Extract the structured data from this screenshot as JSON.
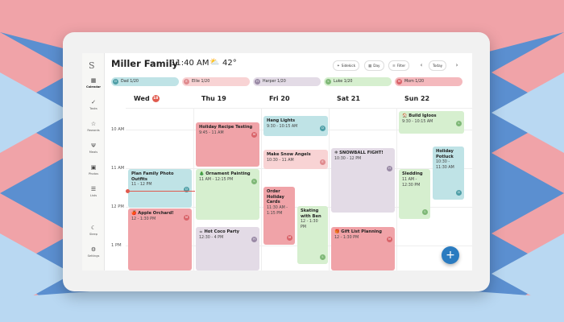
{
  "app": {
    "logo": "S",
    "family": "Miller Family",
    "time": "11:40 AM",
    "weather_icon": "partly-cloudy-icon",
    "temperature": "42°"
  },
  "toolbar": {
    "sidekick": "Sidekick",
    "day": "Day",
    "filter": "Filter",
    "today": "Today",
    "prev": "‹",
    "next": "›"
  },
  "nav": {
    "calendar": "Calendar",
    "tasks": "Tasks",
    "rewards": "Rewards",
    "meals": "Meals",
    "photos": "Photos",
    "lists": "Lists",
    "sleep": "Sleep",
    "settings": "Settings"
  },
  "people": [
    {
      "name": "Dad 1/20",
      "initial": "D",
      "color": "#bfe3e6",
      "av": "#4e9ea6"
    },
    {
      "name": "Ellie 1/20",
      "initial": "E",
      "color": "#f8d3d4",
      "av": "#e08a8e"
    },
    {
      "name": "Harper 1/20",
      "initial": "H",
      "color": "#e3dbe6",
      "av": "#9a8aa6"
    },
    {
      "name": "Luke 1/20",
      "initial": "L",
      "color": "#d6efcf",
      "av": "#7fb877"
    },
    {
      "name": "Mom 1/20",
      "initial": "M",
      "color": "#f4b9bd",
      "av": "#d9646a"
    }
  ],
  "days": {
    "wed": "Wed",
    "wed_badge": "18",
    "thu": "Thu 19",
    "fri": "Fri 20",
    "sat": "Sat 21",
    "sun": "Sun 22"
  },
  "hours": {
    "h10": "10 AM",
    "h11": "11 AM",
    "h12": "12 PM",
    "h1": "1 PM"
  },
  "events": {
    "plan": {
      "title": "Plan Family Photo Outfits",
      "time": "11 - 12 PM",
      "initial": "D"
    },
    "apple": {
      "title": "🍎 Apple Orchard!",
      "time": "12 - 1:30 PM",
      "initial": "M"
    },
    "recipe": {
      "title": "Holiday Recipe Testing",
      "time": "9:45 - 11 AM",
      "initial": "M"
    },
    "ornament": {
      "title": "🎄 Ornament Painting",
      "time": "11 AM - 12:15 PM",
      "initial": "L"
    },
    "cocoa": {
      "title": "☕ Hot Coco Party",
      "time": "12:30 - 4 PM",
      "initial": "H"
    },
    "lights": {
      "title": "Hang Lights",
      "time": "9:30 - 10:15 AM",
      "initial": "D"
    },
    "angels": {
      "title": "Make Snow Angels",
      "time": "10:30 - 11 AM",
      "initial": "E"
    },
    "cards": {
      "title": "Order Holiday Cards",
      "time": "11:30 AM - 1:15 PM",
      "initial": "M"
    },
    "skating": {
      "title": "Skating with Ben",
      "time": "12 - 1:30 PM",
      "initial": "L"
    },
    "snowball": {
      "title": "❄ SNOWBALL FIGHT!",
      "time": "10:30 - 12 PM",
      "initial": "H"
    },
    "gift": {
      "title": "🎁 Gift List Planning",
      "time": "12 - 1:30 PM",
      "initial": "M"
    },
    "igloos": {
      "title": "🏠 Build Igloos",
      "time": "9:30 - 10:15 AM",
      "initial": "L"
    },
    "sledding": {
      "title": "Sledding",
      "time": "11 AM - 12:30 PM",
      "initial": "L"
    },
    "potluck": {
      "title": "Holiday Potluck",
      "time": "10:30 - 11:30 AM",
      "initial": "D"
    }
  },
  "fab": "+"
}
